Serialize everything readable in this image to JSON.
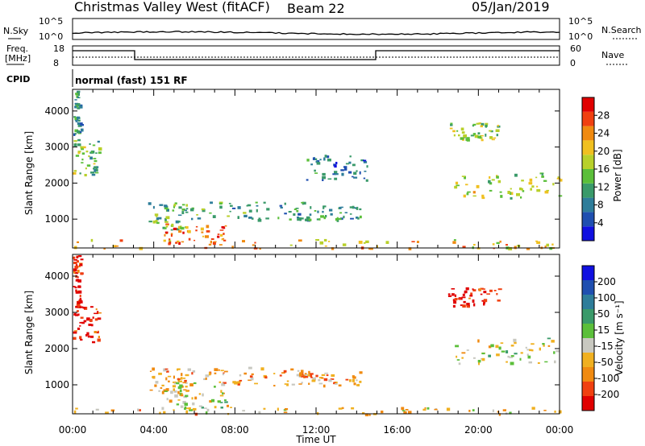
{
  "header": {
    "station": "Christmas Valley West (fitACF)",
    "beam": "Beam 22",
    "date": "05/Jan/2019"
  },
  "status_panels": {
    "nsky_label": "N.Sky",
    "nsky_ticks": [
      "10^5",
      "10^0"
    ],
    "nsearch_label": "N.Search",
    "nsearch_ticks": [
      "10^5",
      "10^0"
    ],
    "freq_label": "Freq.",
    "freq_unit": "[MHz]",
    "freq_ticks": [
      "18",
      "8"
    ],
    "nave_label": "Nave",
    "nave_ticks": [
      "60",
      "0"
    ],
    "cpid_label": "CPID",
    "cpid_text": "normal (fast) 151 RF"
  },
  "chart_data": [
    {
      "type": "heatmap",
      "name": "power",
      "ylabel": "Slant Range [km]",
      "ylim": [
        200,
        4600
      ],
      "yticks": [
        "4000",
        "3000",
        "2000",
        "1000"
      ],
      "colorbar_label": "Power [dB]",
      "colorbar_ticks": [
        "28",
        "24",
        "20",
        "16",
        "12",
        "8",
        "4"
      ],
      "colorscale": [
        "#1010e0",
        "#1f4fb0",
        "#2e7d9a",
        "#3a9a6a",
        "#5bbf3a",
        "#b8d02a",
        "#f0c020",
        "#f08a10",
        "#f04010",
        "#e00000"
      ],
      "xticks": [
        "00:00",
        "04:00",
        "08:00",
        "12:00",
        "16:00",
        "20:00",
        "00:00"
      ],
      "echo_regions": [
        {
          "t0": 0.0,
          "t1": 0.4,
          "r0": 3200,
          "r1": 4600,
          "level": 0.3
        },
        {
          "t0": 0.0,
          "t1": 1.3,
          "r0": 2200,
          "r1": 3200,
          "level": 0.45
        },
        {
          "t0": 3.7,
          "t1": 5.6,
          "r0": 700,
          "r1": 1500,
          "level": 0.4
        },
        {
          "t0": 4.5,
          "t1": 7.6,
          "r0": 300,
          "r1": 900,
          "level": 0.8
        },
        {
          "t0": 5.5,
          "t1": 11.5,
          "r0": 1000,
          "r1": 1500,
          "level": 0.35
        },
        {
          "t0": 11.0,
          "t1": 14.2,
          "r0": 1000,
          "r1": 1400,
          "level": 0.3
        },
        {
          "t0": 11.5,
          "t1": 14.5,
          "r0": 2100,
          "r1": 2800,
          "level": 0.25
        },
        {
          "t0": 18.5,
          "t1": 21.0,
          "r0": 3200,
          "r1": 3700,
          "level": 0.5
        },
        {
          "t0": 18.8,
          "t1": 24.0,
          "r0": 1600,
          "r1": 2300,
          "level": 0.55
        },
        {
          "t0": 0.0,
          "t1": 24.0,
          "r0": 200,
          "r1": 450,
          "level": 0.65
        }
      ]
    },
    {
      "type": "heatmap",
      "name": "velocity",
      "ylabel": "Slant Range [km]",
      "xlabel": "Time UT",
      "ylim": [
        200,
        4600
      ],
      "yticks": [
        "4000",
        "3000",
        "2000",
        "1000"
      ],
      "xticks": [
        "00:00",
        "04:00",
        "08:00",
        "12:00",
        "16:00",
        "20:00",
        "00:00"
      ],
      "colorbar_label": "Velocity [m s⁻¹]",
      "colorbar_ticks": [
        "200",
        "100",
        "50",
        "15",
        "-15",
        "-50",
        "-100",
        "-200"
      ],
      "colorscale": [
        "#e00000",
        "#f04010",
        "#f08a10",
        "#f0b020",
        "#c8c8c0",
        "#5bbf3a",
        "#3a9a6a",
        "#2e7d9a",
        "#1f4fb0",
        "#1010e0"
      ],
      "echo_regions": [
        {
          "t0": 0.0,
          "t1": 0.4,
          "r0": 3200,
          "r1": 4600,
          "level": 0.05
        },
        {
          "t0": 0.0,
          "t1": 1.3,
          "r0": 2200,
          "r1": 3200,
          "level": 0.05
        },
        {
          "t0": 3.7,
          "t1": 5.6,
          "r0": 700,
          "r1": 1500,
          "level": 0.35
        },
        {
          "t0": 4.5,
          "t1": 7.6,
          "r0": 300,
          "r1": 1100,
          "level": 0.45
        },
        {
          "t0": 5.5,
          "t1": 11.5,
          "r0": 1000,
          "r1": 1500,
          "level": 0.3
        },
        {
          "t0": 11.0,
          "t1": 14.2,
          "r0": 1000,
          "r1": 1400,
          "level": 0.3
        },
        {
          "t0": 18.5,
          "t1": 21.0,
          "r0": 3200,
          "r1": 3700,
          "level": 0.05
        },
        {
          "t0": 18.8,
          "t1": 24.0,
          "r0": 1600,
          "r1": 2300,
          "level": 0.45
        },
        {
          "t0": 0.0,
          "t1": 24.0,
          "r0": 200,
          "r1": 400,
          "level": 0.35
        }
      ]
    }
  ]
}
